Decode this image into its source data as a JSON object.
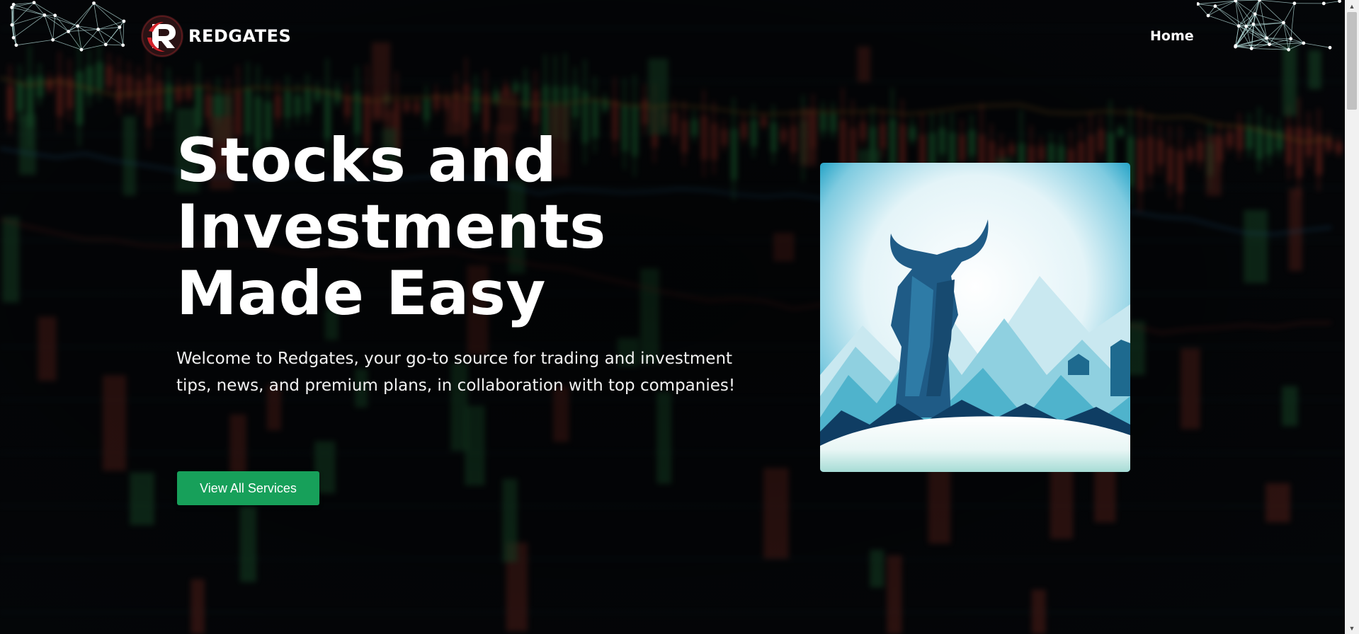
{
  "header": {
    "logo_text": "REDGATES",
    "nav": [
      {
        "label": "Home"
      }
    ]
  },
  "hero": {
    "title_lines": [
      "Stocks and",
      "Investments",
      "Made Easy"
    ],
    "subtitle": "Welcome to Redgates, your go-to source for trading and investment tips, news, and premium plans, in collaboration with top companies!",
    "cta_label": "View All Services"
  },
  "colors": {
    "background": "#05070a",
    "accent_green": "#17a05a",
    "logo_red": "#d3232a",
    "text": "#ffffff"
  },
  "icons": {
    "logo": "redgates-r-logo-icon",
    "scroll_up": "chevron-up-icon",
    "scroll_down": "chevron-down-icon"
  }
}
